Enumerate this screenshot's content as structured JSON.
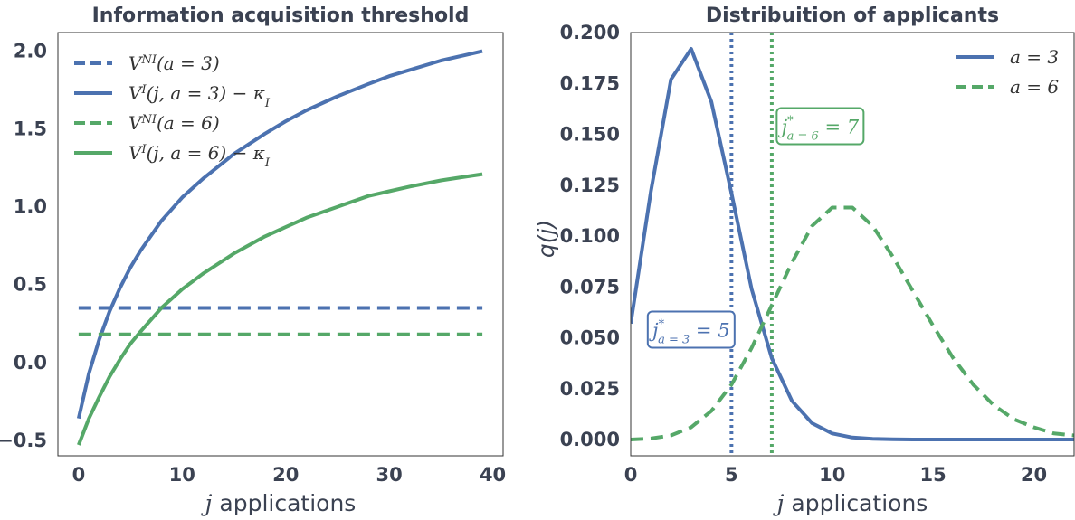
{
  "chart_data": [
    {
      "type": "line",
      "title": "Information acquisition threshold",
      "xlabel": "j applications",
      "ylabel": "",
      "xlim": [
        -2,
        41
      ],
      "ylim": [
        -0.6,
        2.12
      ],
      "xticks": [
        0,
        10,
        20,
        30,
        40
      ],
      "yticks": [
        -0.5,
        0.0,
        0.5,
        1.0,
        1.5,
        2.0
      ],
      "ytick_labels": [
        "−0.5",
        "0.0",
        "0.5",
        "1.0",
        "1.5",
        "2.0"
      ],
      "grid": false,
      "legend_position": "top-left",
      "series": [
        {
          "name": "V^NI(a = 3)",
          "style": "dashed",
          "color": "#4c72b0",
          "x": [
            0,
            39
          ],
          "y": [
            0.35,
            0.35
          ]
        },
        {
          "name": "V^I(j, a = 3) − κ_I",
          "style": "solid",
          "color": "#4c72b0",
          "x": [
            0,
            1,
            2,
            3,
            4,
            5,
            6,
            8,
            10,
            12,
            15,
            18,
            20,
            22,
            25,
            28,
            30,
            32,
            35,
            37,
            39
          ],
          "y": [
            -0.36,
            -0.07,
            0.15,
            0.33,
            0.48,
            0.61,
            0.72,
            0.91,
            1.06,
            1.18,
            1.34,
            1.47,
            1.55,
            1.62,
            1.71,
            1.79,
            1.84,
            1.88,
            1.94,
            1.97,
            2.0
          ]
        },
        {
          "name": "V^NI(a = 6)",
          "style": "dashed",
          "color": "#55a868",
          "x": [
            0,
            39
          ],
          "y": [
            0.18,
            0.18
          ]
        },
        {
          "name": "V^I(j, a = 6) − κ_I",
          "style": "solid",
          "color": "#55a868",
          "x": [
            0,
            1,
            2,
            3,
            4,
            5,
            6,
            8,
            10,
            12,
            15,
            18,
            20,
            22,
            25,
            28,
            30,
            32,
            35,
            37,
            39
          ],
          "y": [
            -0.53,
            -0.36,
            -0.22,
            -0.09,
            0.02,
            0.12,
            0.2,
            0.35,
            0.47,
            0.57,
            0.7,
            0.81,
            0.87,
            0.93,
            1.0,
            1.07,
            1.1,
            1.13,
            1.17,
            1.19,
            1.21
          ]
        }
      ]
    },
    {
      "type": "line",
      "title": "Distribuition of applicants",
      "xlabel": "j applications",
      "ylabel": "q(j)",
      "xlim": [
        0,
        22
      ],
      "ylim": [
        -0.008,
        0.2
      ],
      "xticks": [
        0,
        5,
        10,
        15,
        20
      ],
      "yticks": [
        0.0,
        0.025,
        0.05,
        0.075,
        0.1,
        0.125,
        0.15,
        0.175,
        0.2
      ],
      "ytick_labels": [
        "0.000",
        "0.025",
        "0.050",
        "0.075",
        "0.100",
        "0.125",
        "0.150",
        "0.175",
        "0.200"
      ],
      "grid": false,
      "legend_position": "top-right",
      "series": [
        {
          "name": "a = 3",
          "style": "solid",
          "color": "#4c72b0",
          "x": [
            0,
            1,
            2,
            3,
            4,
            5,
            6,
            7,
            8,
            9,
            10,
            11,
            12,
            13,
            14,
            15,
            16,
            17,
            18,
            19,
            20,
            21,
            22
          ],
          "y": [
            0.057,
            0.122,
            0.177,
            0.192,
            0.166,
            0.121,
            0.074,
            0.04,
            0.019,
            0.008,
            0.003,
            0.001,
            0.0003,
            0.0001,
            0,
            0,
            0,
            0,
            0,
            0,
            0,
            0,
            0
          ]
        },
        {
          "name": "a = 6",
          "style": "dashed",
          "color": "#55a868",
          "x": [
            0,
            1,
            2,
            3,
            4,
            5,
            6,
            7,
            8,
            9,
            10,
            11,
            12,
            13,
            14,
            15,
            16,
            17,
            18,
            19,
            20,
            21,
            22
          ],
          "y": [
            0.0,
            0.0005,
            0.002,
            0.006,
            0.014,
            0.027,
            0.045,
            0.066,
            0.087,
            0.105,
            0.114,
            0.114,
            0.105,
            0.09,
            0.073,
            0.056,
            0.04,
            0.027,
            0.017,
            0.01,
            0.006,
            0.003,
            0.002
          ]
        }
      ],
      "vlines": [
        {
          "x": 5,
          "color": "#4c72b0",
          "style": "dotted"
        },
        {
          "x": 7,
          "color": "#55a868",
          "style": "dotted"
        }
      ],
      "annotations": [
        {
          "text_main": "j",
          "text_sup": "*",
          "text_sub": "a = 3",
          "text_rest": " = 5",
          "color": "#4c72b0",
          "x": 3,
          "y": 0.054
        },
        {
          "text_main": "j",
          "text_sup": "*",
          "text_sub": "a = 6",
          "text_rest": " = 7",
          "color": "#55a868",
          "x": 9.4,
          "y": 0.154
        }
      ]
    }
  ]
}
